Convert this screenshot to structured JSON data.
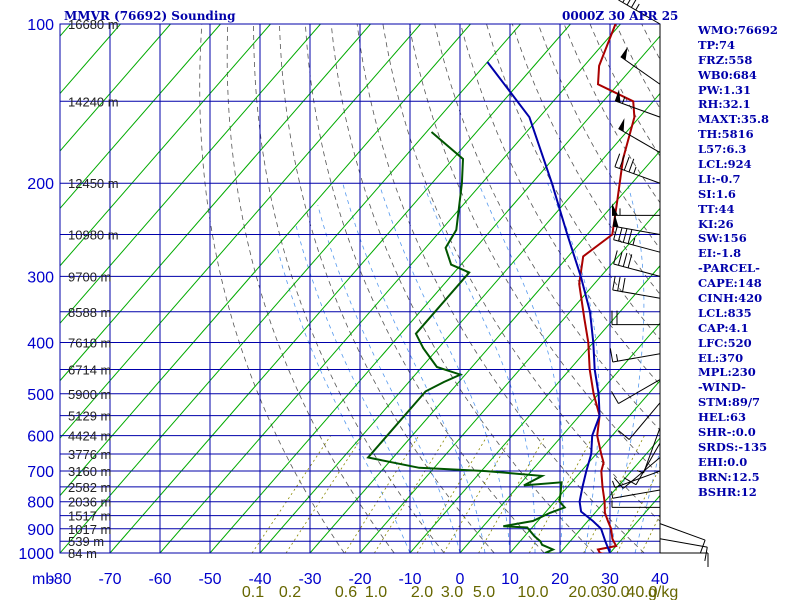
{
  "header": {
    "station_title": "MMVR (76692) Sounding",
    "valid_time": "0000Z 30 APR 25"
  },
  "stats": [
    "WMO:76692",
    "TP:74",
    "FRZ:558",
    "WB0:684",
    "PW:1.31",
    "RH:32.1",
    "MAXT:35.8",
    "TH:5816",
    "L57:6.3",
    "LCL:924",
    "LI:-0.7",
    "SI:1.6",
    "TT:44",
    "KI:26",
    "SW:156",
    "EI:-1.8",
    "-PARCEL-",
    "CAPE:148",
    "CINH:420",
    "LCL:835",
    "CAP:4.1",
    "LFC:520",
    "EL:370",
    "MPL:230",
    "-WIND-",
    "STM:89/7",
    "HEL:63",
    "SHR-:0.0",
    "SRDS:-135",
    "EHI:0.0",
    "BRN:12.5",
    "BSHR:12"
  ],
  "colors": {
    "grid": "#0000aa",
    "isotherm": "#00aa00",
    "dry_adiabat": "#555555",
    "moist_adiabat": "#5599ee",
    "mixing_ratio": "#888800",
    "temperature": "#aa0000",
    "dewpoint": "#005500",
    "parcel": "#0000aa",
    "axis_text": "#0000cc"
  },
  "chart_data": {
    "type": "line",
    "title": "MMVR (76692) Sounding",
    "x_unit_label": "mb",
    "xlim": [
      -80,
      40
    ],
    "ylim_pressure_mb": [
      1000,
      100
    ],
    "y_scale": "log",
    "grid": true,
    "pressure_ticks": [
      100,
      200,
      300,
      400,
      500,
      600,
      700,
      800,
      900,
      1000
    ],
    "temperature_ticks": [
      -80,
      -70,
      -60,
      -50,
      -40,
      -30,
      -20,
      -10,
      0,
      10,
      20,
      30,
      40
    ],
    "mixing_ratio_ticks": [
      "0.1",
      "0.2",
      "0.6",
      "1.0",
      "2.0",
      "3.0",
      "5.0",
      "10.0",
      "20.0",
      "30.0",
      "40.0"
    ],
    "mixing_ratio_unit": "g/kg",
    "height_levels": [
      {
        "label": "16680 m",
        "p": 100
      },
      {
        "label": "14240 m",
        "p": 140
      },
      {
        "label": "12450 m",
        "p": 200
      },
      {
        "label": "10980 m",
        "p": 250
      },
      {
        "label": "9700 m",
        "p": 300
      },
      {
        "label": "8588 m",
        "p": 350
      },
      {
        "label": "7610 m",
        "p": 400
      },
      {
        "label": "6714 m",
        "p": 450
      },
      {
        "label": "5900 m",
        "p": 500
      },
      {
        "label": "5129 m",
        "p": 550
      },
      {
        "label": "4424 m",
        "p": 600
      },
      {
        "label": "3776 m",
        "p": 650
      },
      {
        "label": "3160 m",
        "p": 700
      },
      {
        "label": "2582 m",
        "p": 750
      },
      {
        "label": "2036 m",
        "p": 800
      },
      {
        "label": "1517 m",
        "p": 850
      },
      {
        "label": "1017 m",
        "p": 900
      },
      {
        "label": "539 m",
        "p": 950
      },
      {
        "label": "84 m",
        "p": 1000
      }
    ],
    "series": [
      {
        "name": "",
        "role": "temperature",
        "points": [
          {
            "p": 100,
            "t": -61
          },
          {
            "p": 120,
            "t": -57
          },
          {
            "p": 130,
            "t": -54
          },
          {
            "p": 140,
            "t": -44
          },
          {
            "p": 150,
            "t": -41
          },
          {
            "p": 180,
            "t": -36
          },
          {
            "p": 215,
            "t": -30
          },
          {
            "p": 250,
            "t": -25
          },
          {
            "p": 275,
            "t": -27
          },
          {
            "p": 310,
            "t": -23
          },
          {
            "p": 360,
            "t": -16
          },
          {
            "p": 400,
            "t": -11
          },
          {
            "p": 450,
            "t": -6
          },
          {
            "p": 500,
            "t": -1
          },
          {
            "p": 550,
            "t": 4
          },
          {
            "p": 600,
            "t": 7
          },
          {
            "p": 650,
            "t": 11
          },
          {
            "p": 675,
            "t": 13
          },
          {
            "p": 700,
            "t": 14
          },
          {
            "p": 750,
            "t": 17
          },
          {
            "p": 800,
            "t": 20
          },
          {
            "p": 840,
            "t": 22
          },
          {
            "p": 870,
            "t": 24
          },
          {
            "p": 900,
            "t": 26
          },
          {
            "p": 940,
            "t": 28
          },
          {
            "p": 970,
            "t": 30
          },
          {
            "p": 985,
            "t": 27
          },
          {
            "p": 1000,
            "t": 28
          },
          {
            "p": 1012,
            "t": 31
          }
        ]
      },
      {
        "name": "",
        "role": "dewpoint",
        "points": [
          {
            "p": 160,
            "t": -79
          },
          {
            "p": 180,
            "t": -68
          },
          {
            "p": 200,
            "t": -64
          },
          {
            "p": 245,
            "t": -57
          },
          {
            "p": 265,
            "t": -56
          },
          {
            "p": 285,
            "t": -52
          },
          {
            "p": 295,
            "t": -47
          },
          {
            "p": 360,
            "t": -47
          },
          {
            "p": 385,
            "t": -47
          },
          {
            "p": 410,
            "t": -43
          },
          {
            "p": 445,
            "t": -37
          },
          {
            "p": 460,
            "t": -31
          },
          {
            "p": 475,
            "t": -33
          },
          {
            "p": 495,
            "t": -35
          },
          {
            "p": 660,
            "t": -35
          },
          {
            "p": 690,
            "t": -23
          },
          {
            "p": 700,
            "t": -9
          },
          {
            "p": 715,
            "t": 3
          },
          {
            "p": 745,
            "t": 1
          },
          {
            "p": 735,
            "t": 8
          },
          {
            "p": 800,
            "t": 11
          },
          {
            "p": 820,
            "t": 13
          },
          {
            "p": 840,
            "t": 11
          },
          {
            "p": 870,
            "t": 9
          },
          {
            "p": 890,
            "t": 4
          },
          {
            "p": 895,
            "t": 9
          },
          {
            "p": 930,
            "t": 12
          },
          {
            "p": 950,
            "t": 14
          },
          {
            "p": 965,
            "t": 15
          },
          {
            "p": 985,
            "t": 18
          },
          {
            "p": 1000,
            "t": 17
          },
          {
            "p": 1005,
            "t": 20
          }
        ]
      },
      {
        "name": "",
        "role": "parcel",
        "points": [
          {
            "p": 118,
            "t": -80
          },
          {
            "p": 150,
            "t": -62
          },
          {
            "p": 200,
            "t": -46
          },
          {
            "p": 250,
            "t": -34
          },
          {
            "p": 300,
            "t": -24
          },
          {
            "p": 350,
            "t": -16
          },
          {
            "p": 400,
            "t": -10
          },
          {
            "p": 450,
            "t": -5
          },
          {
            "p": 500,
            "t": 0
          },
          {
            "p": 550,
            "t": 4
          },
          {
            "p": 600,
            "t": 6
          },
          {
            "p": 650,
            "t": 9
          },
          {
            "p": 700,
            "t": 11
          },
          {
            "p": 750,
            "t": 13
          },
          {
            "p": 800,
            "t": 15
          },
          {
            "p": 835,
            "t": 17
          },
          {
            "p": 870,
            "t": 21
          },
          {
            "p": 900,
            "t": 24
          },
          {
            "p": 950,
            "t": 27
          },
          {
            "p": 1000,
            "t": 30
          },
          {
            "p": 1012,
            "t": 31
          }
        ]
      }
    ],
    "wind_barbs": [
      {
        "p": 100,
        "dir": 300,
        "kt": 45
      },
      {
        "p": 130,
        "dir": 305,
        "kt": 50
      },
      {
        "p": 150,
        "dir": 290,
        "kt": 55
      },
      {
        "p": 175,
        "dir": 300,
        "kt": 50
      },
      {
        "p": 200,
        "dir": 290,
        "kt": 45
      },
      {
        "p": 230,
        "dir": 270,
        "kt": 55
      },
      {
        "p": 250,
        "dir": 280,
        "kt": 50
      },
      {
        "p": 270,
        "dir": 285,
        "kt": 45
      },
      {
        "p": 300,
        "dir": 285,
        "kt": 40
      },
      {
        "p": 330,
        "dir": 280,
        "kt": 30
      },
      {
        "p": 370,
        "dir": 270,
        "kt": 20
      },
      {
        "p": 420,
        "dir": 260,
        "kt": 15
      },
      {
        "p": 470,
        "dir": 240,
        "kt": 10
      },
      {
        "p": 520,
        "dir": 220,
        "kt": 10
      },
      {
        "p": 580,
        "dir": 200,
        "kt": 5
      },
      {
        "p": 620,
        "dir": 210,
        "kt": 10
      },
      {
        "p": 660,
        "dir": 230,
        "kt": 10
      },
      {
        "p": 700,
        "dir": 250,
        "kt": 5
      },
      {
        "p": 760,
        "dir": 260,
        "kt": 5
      },
      {
        "p": 820,
        "dir": 270,
        "kt": 5
      },
      {
        "p": 880,
        "dir": 110,
        "kt": 10
      },
      {
        "p": 940,
        "dir": 100,
        "kt": 10
      },
      {
        "p": 1000,
        "dir": 90,
        "kt": 10
      }
    ]
  }
}
